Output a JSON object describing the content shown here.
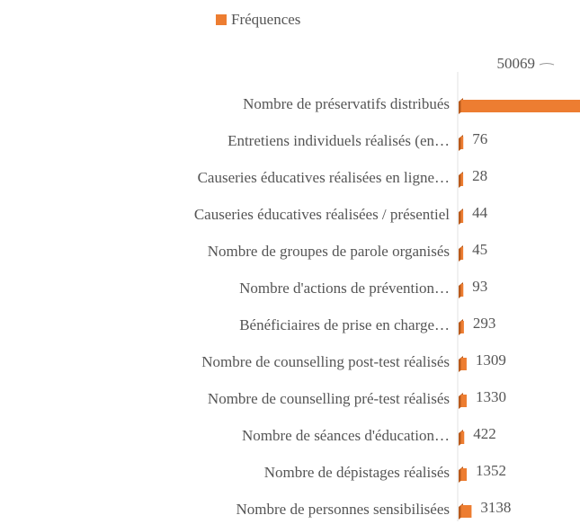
{
  "chart_data": {
    "type": "bar",
    "orientation": "horizontal",
    "categories": [
      "Nombre de préservatifs  distribués",
      "Entretiens individuels réalisés (en…",
      "Causeries éducatives réalisées en ligne…",
      "Causeries éducatives réalisées / présentiel",
      "Nombre de groupes de parole organisés",
      "Nombre d'actions de prévention…",
      "Bénéficiaires de prise en charge…",
      "Nombre de counselling post-test réalisés",
      "Nombre de counselling pré-test réalisés",
      "Nombre de séances d'éducation…",
      "Nombre de dépistages réalisés",
      "Nombre de personnes sensibilisées"
    ],
    "series": [
      {
        "name": "Fréquences",
        "color": "#ED7D31",
        "values": [
          50069,
          76,
          28,
          44,
          45,
          93,
          293,
          1309,
          1330,
          422,
          1352,
          3138
        ]
      }
    ],
    "legend": "top"
  }
}
